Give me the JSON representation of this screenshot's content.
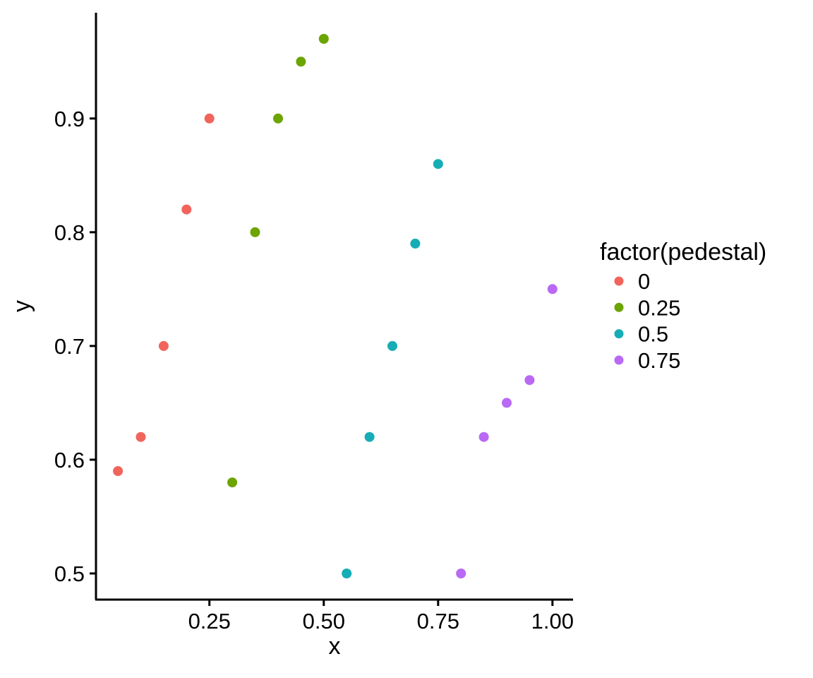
{
  "chart_data": {
    "type": "scatter",
    "title": "",
    "xlabel": "x",
    "ylabel": "y",
    "grid": "off",
    "background": "#ffffff",
    "axis_color": "#000000",
    "text_color": "#000000",
    "point_radius_px": 7,
    "xlim": [
      0.002,
      1.045
    ],
    "ylim": [
      0.477,
      0.993
    ],
    "x_ticks": [
      0.25,
      0.5,
      0.75,
      1.0
    ],
    "x_tick_labels": [
      "0.25",
      "0.50",
      "0.75",
      "1.00"
    ],
    "y_ticks": [
      0.5,
      0.6,
      0.7,
      0.8,
      0.9
    ],
    "y_tick_labels": [
      "0.5",
      "0.6",
      "0.7",
      "0.8",
      "0.9"
    ],
    "legend": {
      "title": "factor(pedestal)",
      "position": "right"
    },
    "series": [
      {
        "name": "0",
        "color": "#F1645C",
        "points": [
          [
            0.05,
            0.59
          ],
          [
            0.1,
            0.62
          ],
          [
            0.15,
            0.7
          ],
          [
            0.2,
            0.82
          ],
          [
            0.25,
            0.9
          ]
        ]
      },
      {
        "name": "0.25",
        "color": "#6CA400",
        "points": [
          [
            0.3,
            0.58
          ],
          [
            0.35,
            0.8
          ],
          [
            0.4,
            0.9
          ],
          [
            0.45,
            0.95
          ],
          [
            0.5,
            0.97
          ]
        ]
      },
      {
        "name": "0.5",
        "color": "#16ADB5",
        "points": [
          [
            0.55,
            0.5
          ],
          [
            0.6,
            0.62
          ],
          [
            0.65,
            0.7
          ],
          [
            0.7,
            0.79
          ],
          [
            0.75,
            0.86
          ]
        ]
      },
      {
        "name": "0.75",
        "color": "#B969F4",
        "points": [
          [
            0.8,
            0.5
          ],
          [
            0.85,
            0.62
          ],
          [
            0.9,
            0.65
          ],
          [
            0.95,
            0.67
          ],
          [
            1.0,
            0.75
          ]
        ]
      }
    ]
  }
}
